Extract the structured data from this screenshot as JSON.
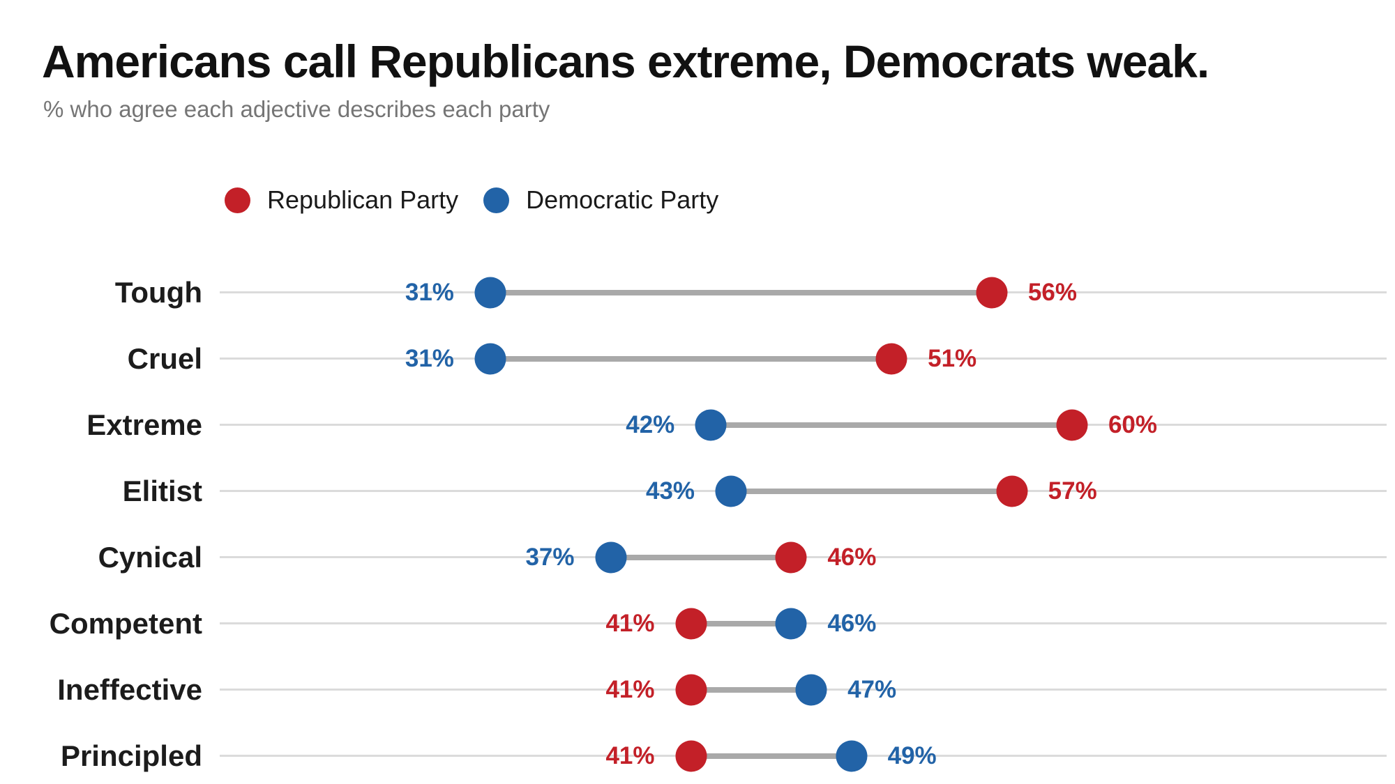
{
  "header": {
    "title": "Americans call Republicans extreme, Democrats weak.",
    "subtitle": "% who agree each adjective describes each party"
  },
  "legend": {
    "items": [
      {
        "key": "republican",
        "label": "Republican Party",
        "color": "#C32028"
      },
      {
        "key": "democratic",
        "label": "Democratic Party",
        "color": "#2263A7"
      }
    ]
  },
  "colors": {
    "republican": "#C32028",
    "democratic": "#2263A7",
    "connector": "#A9A9A9",
    "baseline": "#DBDBDB",
    "title_text": "#111111",
    "subtitle_text": "#757575",
    "category_text": "#1C1C1C",
    "background": "#FFFFFF"
  },
  "chart_data": {
    "type": "scatter",
    "variant": "dumbbell-dot-plot",
    "title": "Americans call Republicans extreme, Democrats weak.",
    "subtitle": "% who agree each adjective describes each party",
    "categories": [
      "Tough",
      "Cruel",
      "Extreme",
      "Elitist",
      "Cynical",
      "Competent",
      "Ineffective",
      "Principled"
    ],
    "series": [
      {
        "name": "Republican Party",
        "color": "#C32028",
        "values": [
          56,
          51,
          60,
          57,
          46,
          41,
          41,
          41
        ],
        "labels": [
          "56%",
          "51%",
          "60%",
          "57%",
          "46%",
          "41%",
          "41%",
          "41%"
        ]
      },
      {
        "name": "Democratic Party",
        "color": "#2263A7",
        "values": [
          31,
          31,
          42,
          43,
          37,
          46,
          47,
          49
        ],
        "labels": [
          "31%",
          "31%",
          "42%",
          "43%",
          "37%",
          "46%",
          "47%",
          "49%"
        ]
      }
    ],
    "value_suffix": "%",
    "x_axis": {
      "visible": false,
      "implied_value_range": [
        31,
        60
      ]
    },
    "grid": false,
    "legend_position": "top-left",
    "annotation_rule": "smaller value labeled left of its dot, larger value labeled right of its dot"
  }
}
